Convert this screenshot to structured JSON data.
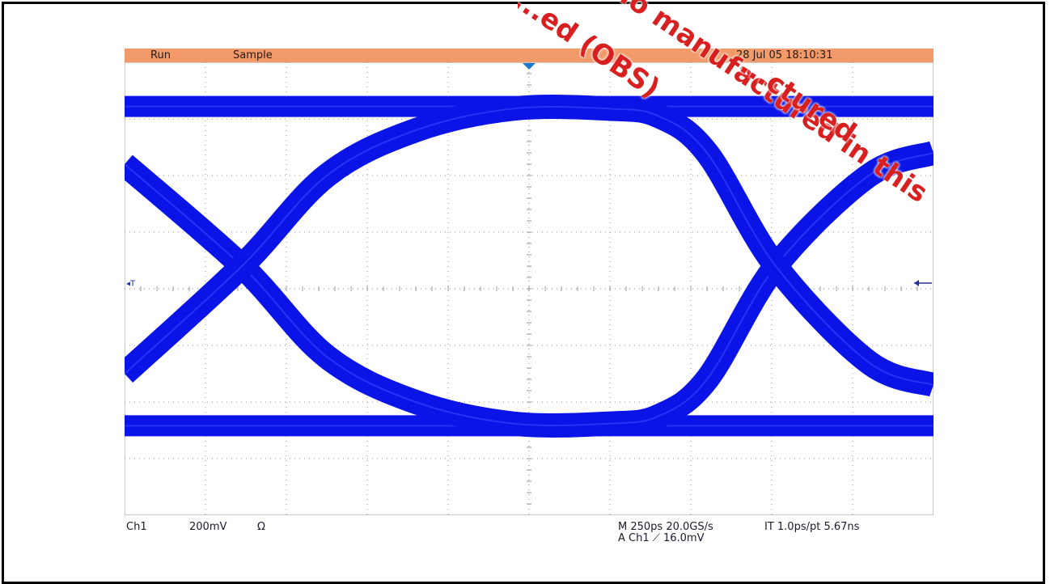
{
  "status": {
    "mode": "Run",
    "acquisition": "Sample",
    "timestamp": "28 Jul 05 18:10:31"
  },
  "readouts": {
    "channel": "Ch1",
    "volts_per_div": "200mV",
    "impedance": "Ω",
    "horizontal": "M 250ps 20.0GS/s",
    "interpolation": "IT 1.0ps/pt 5.67ns",
    "trigger": "A  Ch1  ⟋  16.0mV"
  },
  "watermark": {
    "lines": [
      "...ed (OBS)",
      "...o manufactured in this",
      "...ctured"
    ]
  },
  "colors": {
    "trace": "#0a14e6",
    "status_bar": "#f29a6a",
    "grid": "#9a9a9a",
    "watermark": "#d92020"
  },
  "chart_data": {
    "type": "line",
    "title": "",
    "xlabel": "",
    "ylabel": "",
    "grid": true,
    "divisions": {
      "x": 10,
      "y": 8
    },
    "xlim": [
      0,
      10
    ],
    "ylim": [
      0,
      8
    ],
    "x_units": "div (250ps/div)",
    "y_units": "div (200mV/div)",
    "levels": {
      "high": 7.22,
      "low": 1.58,
      "crossing": 4.4
    },
    "crossings": [
      1.45,
      8.05
    ],
    "series": [
      {
        "x": [
          0,
          10
        ],
        "y": [
          7.22,
          7.22
        ]
      },
      {
        "x": [
          0,
          10
        ],
        "y": [
          1.58,
          1.58
        ]
      },
      {
        "x": [
          0,
          1.45,
          2.5,
          3.6,
          4.8,
          6.0,
          6.6,
          7.2,
          8.05,
          9.2,
          10
        ],
        "y": [
          6.2,
          4.4,
          2.8,
          2.0,
          1.62,
          1.62,
          1.75,
          2.4,
          4.4,
          6.0,
          6.4
        ]
      },
      {
        "x": [
          0,
          1.45,
          2.5,
          3.6,
          4.8,
          6.0,
          6.6,
          7.2,
          8.05,
          9.2,
          10
        ],
        "y": [
          2.5,
          4.4,
          6.0,
          6.8,
          7.18,
          7.18,
          7.05,
          6.4,
          4.4,
          2.7,
          2.3
        ]
      }
    ]
  }
}
